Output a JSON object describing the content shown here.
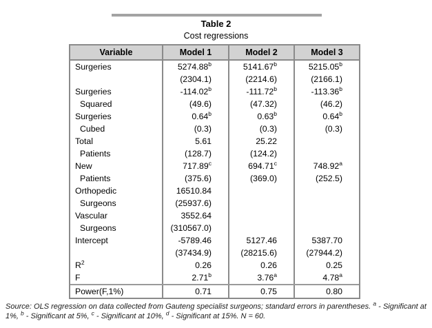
{
  "title": "Table 2",
  "subtitle": "Cost regressions",
  "table": {
    "headers": [
      "Variable",
      "Model 1",
      "Model 2",
      "Model 3"
    ],
    "rows": [
      {
        "label": "Surgeries",
        "indent": false,
        "m1": "5274.88^b",
        "m2": "5141.67^b",
        "m3": "5215.05^b"
      },
      {
        "label": "",
        "indent": false,
        "m1": "(2304.1)",
        "m2": "(2214.6)",
        "m3": "(2166.1)"
      },
      {
        "label": "Surgeries",
        "indent": false,
        "m1": "-114.02^b",
        "m2": "-111.72^b",
        "m3": "-113.36^b"
      },
      {
        "label": "Squared",
        "indent": true,
        "m1": "(49.6)",
        "m2": "(47.32)",
        "m3": "(46.2)"
      },
      {
        "label": "Surgeries",
        "indent": false,
        "m1": "0.64^b",
        "m2": "0.63^b",
        "m3": "0.64^b"
      },
      {
        "label": "Cubed",
        "indent": true,
        "m1": "(0.3)",
        "m2": "(0.3)",
        "m3": "(0.3)"
      },
      {
        "label": "Total",
        "indent": false,
        "m1": "5.61",
        "m2": "25.22",
        "m3": ""
      },
      {
        "label": "Patients",
        "indent": true,
        "m1": "(128.7)",
        "m2": "(124.2)",
        "m3": ""
      },
      {
        "label": "New",
        "indent": false,
        "m1": "717.89^c",
        "m2": "694.71^c",
        "m3": "748.92^a"
      },
      {
        "label": "Patients",
        "indent": true,
        "m1": "(375.6)",
        "m2": "(369.0)",
        "m3": "(252.5)"
      },
      {
        "label": "Orthopedic",
        "indent": false,
        "m1": "16510.84",
        "m2": "",
        "m3": ""
      },
      {
        "label": "Surgeons",
        "indent": true,
        "m1": "(25937.6)",
        "m2": "",
        "m3": ""
      },
      {
        "label": "Vascular",
        "indent": false,
        "m1": "3552.64",
        "m2": "",
        "m3": ""
      },
      {
        "label": "Surgeons",
        "indent": true,
        "m1": "(310567.0)",
        "m2": "",
        "m3": ""
      },
      {
        "label": "Intercept",
        "indent": false,
        "m1": "-5789.46",
        "m2": "5127.46",
        "m3": "5387.70"
      },
      {
        "label": "",
        "indent": false,
        "m1": "(37434.9)",
        "m2": "(28215.6)",
        "m3": "(27944.2)"
      },
      {
        "label": "R^2",
        "indent": false,
        "m1": "0.26",
        "m2": "0.26",
        "m3": "0.25"
      },
      {
        "label": "F",
        "indent": false,
        "m1": "2.71^b",
        "m2": "3.76^a",
        "m3": "4.78^a"
      },
      {
        "label": "Power(F,1%)",
        "indent": false,
        "m1": "0.71",
        "m2": "0.75",
        "m3": "0.80",
        "rule_above": true
      }
    ]
  },
  "footnote": "Source: OLS regression on data collected from Gauteng specialist surgeons; standard errors in parentheses. ^a - Significant at 1%, ^b - Significant at 5%, ^c - Significant at 10%, ^d - Significant at 15%. N = 60.",
  "colors": {
    "header_bg": "#d2d2d2",
    "border": "#8a8a8a",
    "top_rule": "#a3a3a3"
  }
}
